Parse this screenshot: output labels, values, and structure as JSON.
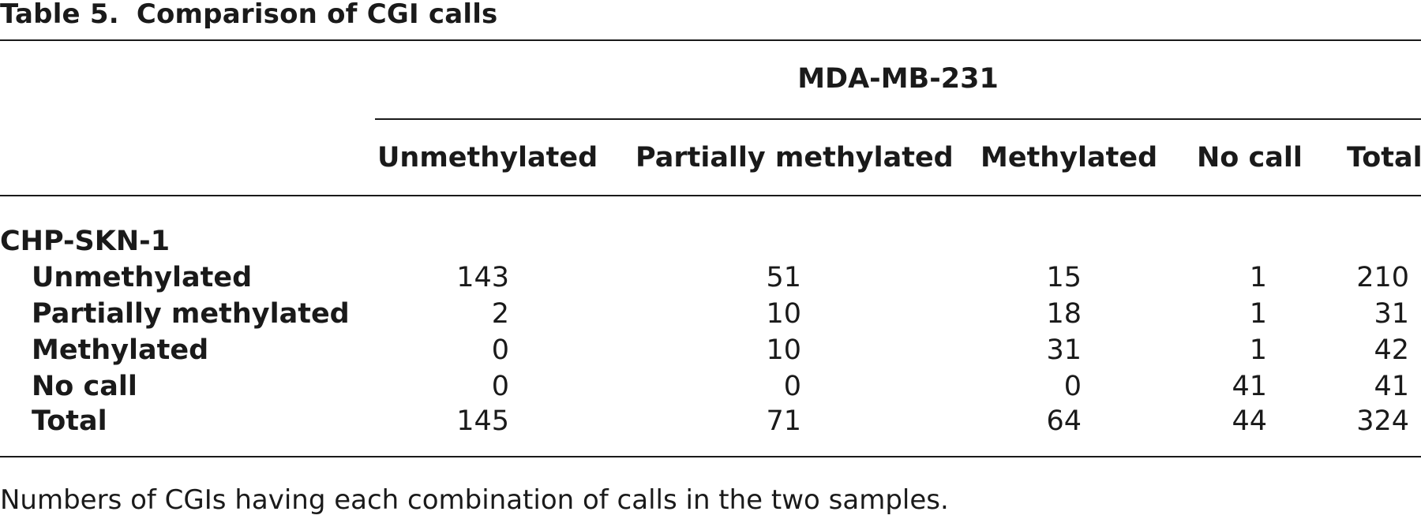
{
  "table": {
    "label": "Table 5.",
    "title": "Comparison of CGI calls",
    "column_group": "MDA-MB-231",
    "columns": [
      "Unmethylated",
      "Partially methylated",
      "Methylated",
      "No call",
      "Total"
    ],
    "row_group": "CHP-SKN-1",
    "rows": [
      {
        "label": "Unmethylated",
        "values": [
          "143",
          "51",
          "15",
          "1",
          "210"
        ]
      },
      {
        "label": "Partially methylated",
        "values": [
          "2",
          "10",
          "18",
          "1",
          "31"
        ]
      },
      {
        "label": "Methylated",
        "values": [
          "0",
          "10",
          "31",
          "1",
          "42"
        ]
      },
      {
        "label": "No call",
        "values": [
          "0",
          "0",
          "0",
          "41",
          "41"
        ]
      },
      {
        "label": "Total",
        "values": [
          "145",
          "71",
          "64",
          "44",
          "324"
        ]
      }
    ],
    "footnote": "Numbers of CGIs having each combination of calls in the two samples."
  }
}
